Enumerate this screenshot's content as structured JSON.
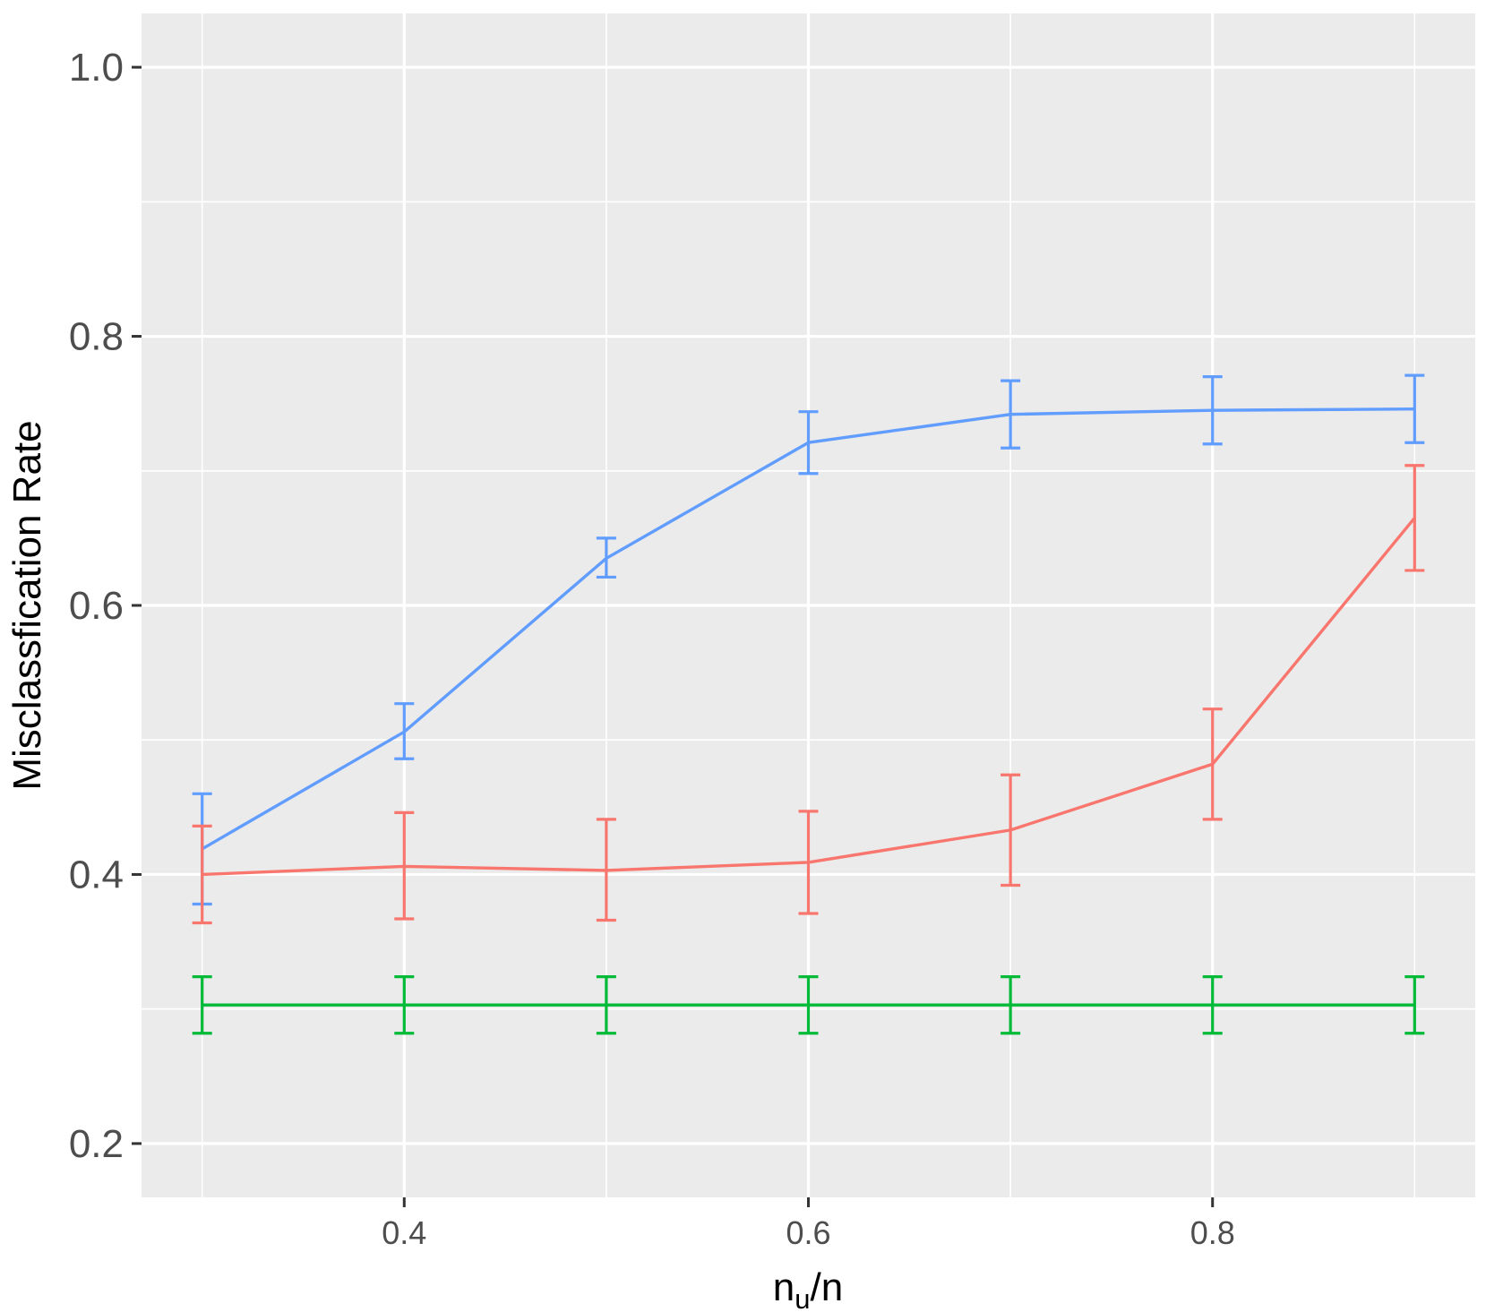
{
  "chart_data": {
    "type": "line",
    "title": "",
    "xlabel": "n_u/n",
    "xlabel_main": "n",
    "xlabel_sub": "u",
    "xlabel_tail": "/n",
    "ylabel": "Misclassfication Rate",
    "x": [
      0.3,
      0.4,
      0.5,
      0.6,
      0.7,
      0.8,
      0.9
    ],
    "xlim": [
      0.27,
      0.93
    ],
    "ylim": [
      0.16,
      1.04
    ],
    "x_ticks": [
      0.4,
      0.6,
      0.8
    ],
    "x_tick_labels": [
      "0.4",
      "0.6",
      "0.8"
    ],
    "y_ticks": [
      0.2,
      0.4,
      0.6,
      0.8,
      1.0
    ],
    "y_tick_labels": [
      "0.2",
      "0.4",
      "0.6",
      "0.8",
      "1.0"
    ],
    "grid": true,
    "legend": "none",
    "series": [
      {
        "color": "#619CFF",
        "values": [
          0.419,
          0.506,
          0.635,
          0.721,
          0.742,
          0.745,
          0.746
        ],
        "lower": [
          0.378,
          0.486,
          0.621,
          0.698,
          0.717,
          0.72,
          0.721
        ],
        "upper": [
          0.46,
          0.527,
          0.65,
          0.744,
          0.767,
          0.77,
          0.771
        ]
      },
      {
        "color": "#F8766D",
        "values": [
          0.4,
          0.406,
          0.403,
          0.409,
          0.433,
          0.482,
          0.665
        ],
        "lower": [
          0.364,
          0.367,
          0.366,
          0.371,
          0.392,
          0.441,
          0.626
        ],
        "upper": [
          0.436,
          0.446,
          0.441,
          0.447,
          0.474,
          0.523,
          0.704
        ]
      },
      {
        "color": "#00BA38",
        "values": [
          0.303,
          0.303,
          0.303,
          0.303,
          0.303,
          0.303,
          0.303
        ],
        "lower": [
          0.282,
          0.282,
          0.282,
          0.282,
          0.282,
          0.282,
          0.282
        ],
        "upper": [
          0.324,
          0.324,
          0.324,
          0.324,
          0.324,
          0.324,
          0.324
        ]
      }
    ]
  }
}
